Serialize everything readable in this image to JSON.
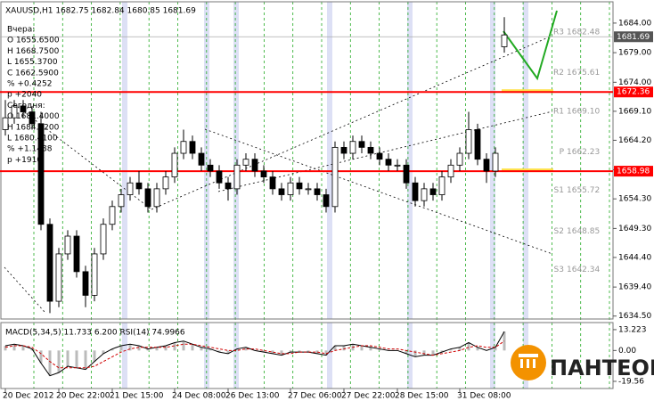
{
  "chart_data": {
    "type": "candlestick",
    "title": "XAUUSD,H1 1682.75 1682.84 1680.85 1681.69",
    "info": [
      "Вчера:",
      "O 1655.6500",
      "H 1668.7500",
      "L 1655.3700",
      "C 1662.5900",
      "% +0.4252",
      "p +2040",
      "Сегодня:",
      "O 1681.4000",
      "H 1684.7200",
      "L 1680.4100",
      "% +1.1488",
      "p +1910"
    ],
    "categories": [
      "20 Dec 2012",
      null,
      null,
      null,
      null,
      null,
      "20 Dec 22:00",
      null,
      null,
      null,
      null,
      null,
      "21 Dec 15:00",
      null,
      null,
      null,
      null,
      null,
      null,
      "24 Dec 08:00",
      null,
      null,
      null,
      null,
      null,
      "26 Dec 13:00",
      null,
      null,
      null,
      null,
      null,
      null,
      "27 Dec 06:00",
      null,
      null,
      null,
      null,
      null,
      "27 Dec 22:00",
      null,
      null,
      null,
      null,
      null,
      "28 Dec 15:00",
      null,
      null,
      null,
      null,
      null,
      null,
      "31 Dec 08:00",
      null,
      null,
      null,
      null,
      null
    ],
    "open": [
      1666,
      1668,
      1670,
      1669,
      1667,
      1650,
      1637,
      1645,
      1648,
      1642,
      1638,
      1645,
      1650,
      1653,
      1655,
      1657,
      1656,
      1653,
      1656,
      1658,
      1662,
      1664,
      1662,
      1660,
      1659,
      1657,
      1656,
      1660,
      1661,
      1659,
      1658,
      1656,
      1655,
      1657,
      1656,
      1656,
      1655,
      1653,
      1663,
      1662,
      1664,
      1663,
      1662,
      1661,
      1660,
      1660,
      1657,
      1654,
      1656,
      1655,
      1658,
      1660,
      1662,
      1666,
      1661,
      1659,
      1680
    ],
    "high": [
      1671,
      1671,
      1671,
      1670,
      1669,
      1651,
      1646,
      1649,
      1649,
      1643,
      1646,
      1651,
      1654,
      1656,
      1658,
      1659,
      1657,
      1657,
      1659,
      1663,
      1666,
      1665,
      1663,
      1661,
      1660,
      1658,
      1661,
      1662,
      1662,
      1660,
      1659,
      1657,
      1658,
      1658,
      1657,
      1657,
      1656,
      1664,
      1664,
      1665,
      1665,
      1664,
      1663,
      1662,
      1661,
      1661,
      1658,
      1657,
      1657,
      1659,
      1661,
      1663,
      1669,
      1667,
      1662,
      1663,
      1685
    ],
    "low": [
      1665,
      1667,
      1668,
      1666,
      1649,
      1635,
      1636,
      1644,
      1641,
      1636,
      1637,
      1644,
      1649,
      1652,
      1654,
      1655,
      1652,
      1652,
      1655,
      1657,
      1661,
      1661,
      1659,
      1658,
      1656,
      1654,
      1655,
      1659,
      1658,
      1657,
      1655,
      1654,
      1654,
      1655,
      1655,
      1654,
      1652,
      1652,
      1661,
      1661,
      1662,
      1661,
      1660,
      1659,
      1659,
      1656,
      1653,
      1653,
      1654,
      1654,
      1657,
      1659,
      1661,
      1660,
      1657,
      1658,
      1679
    ],
    "close": [
      1668,
      1670,
      1669,
      1667,
      1650,
      1637,
      1645,
      1648,
      1642,
      1638,
      1645,
      1650,
      1653,
      1655,
      1657,
      1656,
      1653,
      1656,
      1658,
      1662,
      1664,
      1662,
      1660,
      1659,
      1657,
      1656,
      1660,
      1661,
      1659,
      1658,
      1656,
      1655,
      1657,
      1656,
      1656,
      1655,
      1653,
      1663,
      1662,
      1664,
      1663,
      1662,
      1661,
      1660,
      1660,
      1657,
      1654,
      1656,
      1655,
      1658,
      1660,
      1662,
      1666,
      1661,
      1659,
      1662,
      1682
    ],
    "ylim": [
      1634.0,
      1687.6
    ],
    "yticks": [
      {
        "value": 1634.5,
        "label": "1634.50"
      },
      {
        "value": 1639.4,
        "label": "1639.40"
      },
      {
        "value": 1644.4,
        "label": "1644.40"
      },
      {
        "value": 1649.3,
        "label": "1649.30"
      },
      {
        "value": 1654.3,
        "label": "1654.30"
      },
      {
        "value": 1659.2,
        "label": "1659.20"
      },
      {
        "value": 1664.2,
        "label": "1664.20"
      },
      {
        "value": 1669.1,
        "label": "1669.10"
      },
      {
        "value": 1674,
        "label": "1674.00"
      },
      {
        "value": 1679,
        "label": "1679.00"
      },
      {
        "value": 1684,
        "label": "1684.00"
      }
    ],
    "levels": [
      {
        "value": 1672.36,
        "color": "#ff0000"
      },
      {
        "value": 1658.98,
        "color": "#ff0000"
      }
    ],
    "last_price": 1681.69,
    "pivots": [
      {
        "name": "R3",
        "value": 1682.48,
        "label": "1682.48"
      },
      {
        "name": "R2",
        "value": 1675.61,
        "label": "1675.61"
      },
      {
        "name": "R1",
        "value": 1669.1,
        "label": "1669.10"
      },
      {
        "name": "P",
        "value": 1662.23,
        "label": "1662.23"
      },
      {
        "name": "S1",
        "value": 1655.72,
        "label": "1655.72"
      },
      {
        "name": "S2",
        "value": 1648.85,
        "label": "1648.85"
      },
      {
        "name": "S3",
        "value": 1642.34,
        "label": "1642.34"
      }
    ],
    "macd": {
      "title": "MACD(5,34,5) 11.733 6.200  RSI(14) 74.9966",
      "ylim": [
        -24.1,
        17.7
      ],
      "yticks": [
        13.223,
        {
          "value": 0,
          "label": "0.00"
        },
        -19.56
      ],
      "series": [
        {
          "color": "#000000",
          "values": [
            3,
            4,
            3,
            1,
            -8,
            -16,
            -14,
            -10,
            -11,
            -12,
            -7,
            -2,
            1,
            3,
            4,
            3,
            1,
            2,
            3,
            5,
            6,
            4,
            2,
            1,
            -1,
            -2,
            1,
            2,
            0,
            -1,
            -2,
            -3,
            -1,
            -1,
            -1,
            -2,
            -3,
            3,
            3,
            4,
            3,
            2,
            1,
            0,
            0,
            -2,
            -4,
            -3,
            -3,
            -1,
            1,
            2,
            5,
            2,
            0,
            2,
            12
          ]
        },
        {
          "color": "#d00000",
          "values": [
            2,
            3,
            3,
            2,
            -2,
            -7,
            -11,
            -11,
            -11,
            -11,
            -10,
            -7,
            -4,
            -1,
            1,
            2,
            2,
            2,
            2,
            3,
            4,
            4,
            3,
            2,
            1,
            0,
            0,
            1,
            1,
            0,
            -1,
            -2,
            -2,
            -1,
            -1,
            -1,
            -2,
            0,
            1,
            2,
            3,
            3,
            2,
            1,
            1,
            0,
            -1,
            -2,
            -3,
            -2,
            -1,
            0,
            2,
            3,
            2,
            2,
            6
          ]
        }
      ]
    },
    "logo": "ПАНТЕОН"
  }
}
